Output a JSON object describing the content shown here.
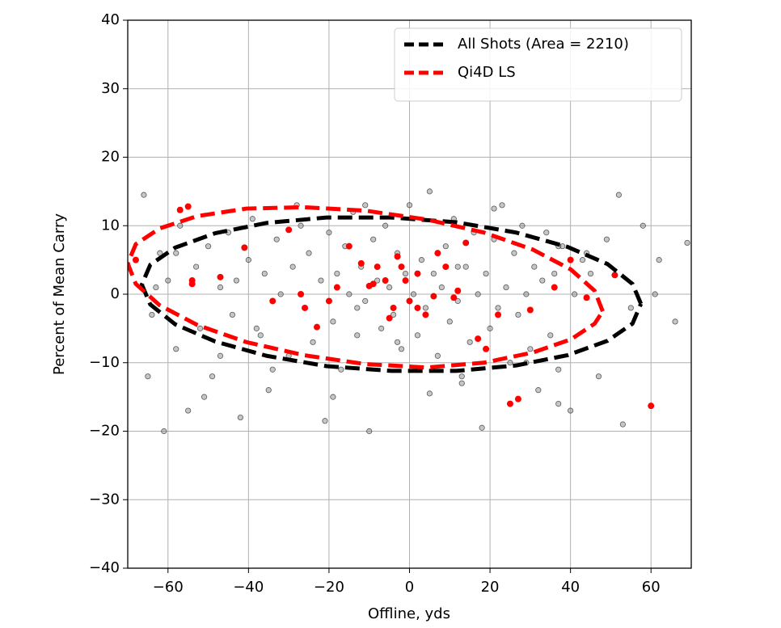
{
  "chart_data": {
    "type": "scatter",
    "xlabel": "Offline, yds",
    "ylabel": "Percent of Mean Carry",
    "xlim": [
      -70,
      70
    ],
    "ylim": [
      -40,
      40
    ],
    "xticks": [
      {
        "value": -60,
        "label": "−60"
      },
      {
        "value": -40,
        "label": "−40"
      },
      {
        "value": -20,
        "label": "−20"
      },
      0,
      20,
      40,
      60
    ],
    "yticks": [
      {
        "value": -40,
        "label": "−40"
      },
      {
        "value": -30,
        "label": "−30"
      },
      {
        "value": -20,
        "label": "−20"
      },
      {
        "value": -10,
        "label": "−10"
      },
      0,
      10,
      20,
      30,
      40
    ],
    "grid": true,
    "legend": "upper right",
    "series": [
      {
        "name": "All Shots (Area = 2210)",
        "type": "line",
        "dashed": true,
        "color": "#000000",
        "x": [
          57.5,
          55.4,
          49.2,
          39.3,
          26.5,
          11.6,
          -4.5,
          -20.6,
          -35.5,
          -48.3,
          -58.2,
          -64.4,
          -66.5,
          -64.4,
          -58.2,
          -48.3,
          -35.5,
          -20.6,
          -4.5,
          11.6,
          26.5,
          39.3,
          49.2,
          55.4,
          57.5
        ],
        "y": [
          -1.4,
          1.5,
          4.4,
          6.9,
          9.0,
          10.5,
          11.2,
          11.2,
          10.4,
          8.9,
          6.8,
          4.3,
          1.4,
          -1.5,
          -4.4,
          -6.9,
          -9.0,
          -10.5,
          -11.2,
          -11.2,
          -10.4,
          -8.9,
          -6.8,
          -4.3,
          -1.4
        ]
      },
      {
        "name": "Qi4D LS",
        "type": "line",
        "dashed": true,
        "color": "#ff0000",
        "x": [
          48,
          46.0,
          40.1,
          30.7,
          18.5,
          4.3,
          -11,
          -26.3,
          -40.5,
          -52.7,
          -62.1,
          -68.0,
          -70,
          -68.0,
          -62.1,
          -52.7,
          -40.5,
          -26.3,
          -11,
          4.3,
          18.5,
          30.7,
          40.1,
          46.0,
          48
        ],
        "y": [
          -2.5,
          0.5,
          3.6,
          6.5,
          9.0,
          10.9,
          12.2,
          12.7,
          12.5,
          11.4,
          9.6,
          7.3,
          4.5,
          1.5,
          -1.6,
          -4.5,
          -7.0,
          -8.9,
          -10.2,
          -10.7,
          -10.0,
          -8.5,
          -6.6,
          -4.3,
          -2.5
        ]
      },
      {
        "type": "scatter",
        "color": "#808080",
        "x": [
          -66,
          -64,
          -62,
          -61,
          -60,
          -58,
          -57,
          -55,
          -53,
          -52,
          -50,
          -49,
          -47,
          -45,
          -44,
          -42,
          -40,
          -39,
          -37,
          -36,
          -35,
          -33,
          -32,
          -30,
          -29,
          -28,
          -26,
          -25,
          -24,
          -22,
          -21,
          -20,
          -19,
          -18,
          -17,
          -16,
          -15,
          -14,
          -13,
          -12,
          -11,
          -10,
          -9,
          -8,
          -7,
          -6,
          -5,
          -4,
          -3,
          -2,
          -1,
          0,
          1,
          2,
          3,
          4,
          5,
          6,
          7,
          8,
          9,
          10,
          11,
          12,
          13,
          14,
          15,
          16,
          17,
          18,
          19,
          20,
          21,
          22,
          23,
          24,
          25,
          26,
          27,
          28,
          29,
          30,
          31,
          32,
          33,
          34,
          35,
          36,
          37,
          38,
          40,
          41,
          43,
          45,
          47,
          49,
          52,
          55,
          58,
          62,
          66,
          69,
          -65,
          -58,
          -51,
          -43,
          -34,
          -27,
          -19,
          -11,
          -3,
          5,
          13,
          21,
          29,
          37,
          44,
          53,
          61,
          -63,
          -38,
          -13,
          12,
          37,
          -47,
          0
        ],
        "y": [
          14.5,
          -3,
          6,
          -20,
          2,
          -8,
          10,
          -17,
          4,
          -5,
          7,
          -12,
          1,
          9,
          -3,
          -18,
          5,
          11,
          -6,
          3,
          -14,
          8,
          0,
          -9,
          4,
          13,
          -2,
          6,
          -7,
          2,
          -18.5,
          9,
          -4,
          3,
          -11,
          7,
          0,
          12,
          -6,
          4,
          -1,
          -20,
          8,
          2,
          -5,
          10,
          1,
          -3,
          6,
          -8,
          3,
          13,
          0,
          -6,
          5,
          -2,
          15,
          3,
          -9,
          1,
          7,
          -4,
          11,
          -1,
          -13,
          4,
          -7,
          9,
          0,
          -19.5,
          3,
          -5,
          8,
          -2,
          13,
          1,
          -10,
          6,
          -3,
          10,
          0,
          -8,
          4,
          -14,
          2,
          9,
          -6,
          3,
          -11,
          7,
          -17,
          0,
          5,
          3,
          -12,
          8,
          14.5,
          -2,
          10,
          5,
          -4,
          7.5,
          -12,
          6,
          -15,
          2,
          -11,
          10,
          -15,
          13,
          -7,
          -14.5,
          -12,
          12.5,
          -10,
          -16,
          6,
          -19,
          0,
          1,
          -5,
          -2,
          4,
          7,
          -9,
          -1
        ]
      },
      {
        "type": "scatter",
        "color": "#ff0000",
        "x": [
          -57,
          -55,
          -68,
          -54,
          -54,
          -47,
          -41,
          -30,
          -27,
          -26,
          -23,
          -18,
          -12,
          -10,
          -9,
          -8,
          -6,
          -5,
          -3,
          -2,
          -1,
          0,
          2,
          4,
          6,
          7,
          9,
          11,
          14,
          17,
          19,
          22,
          25,
          27,
          30,
          36,
          40,
          44,
          51,
          60,
          -34,
          -15,
          -20,
          2,
          -4,
          12
        ],
        "y": [
          12.3,
          12.8,
          5,
          2,
          1.5,
          2.5,
          6.8,
          9.4,
          0,
          -2,
          -4.8,
          1,
          4.5,
          1.2,
          1.5,
          4,
          2,
          -3.5,
          5.5,
          4,
          2,
          -1,
          -2,
          -3,
          -0.3,
          6,
          4,
          -0.5,
          7.5,
          -6.5,
          -8,
          -3,
          -16,
          -15.3,
          -2.3,
          1,
          5,
          -0.5,
          2.8,
          -16.3,
          -1,
          7,
          -1,
          3,
          -2,
          0.5
        ]
      }
    ]
  }
}
